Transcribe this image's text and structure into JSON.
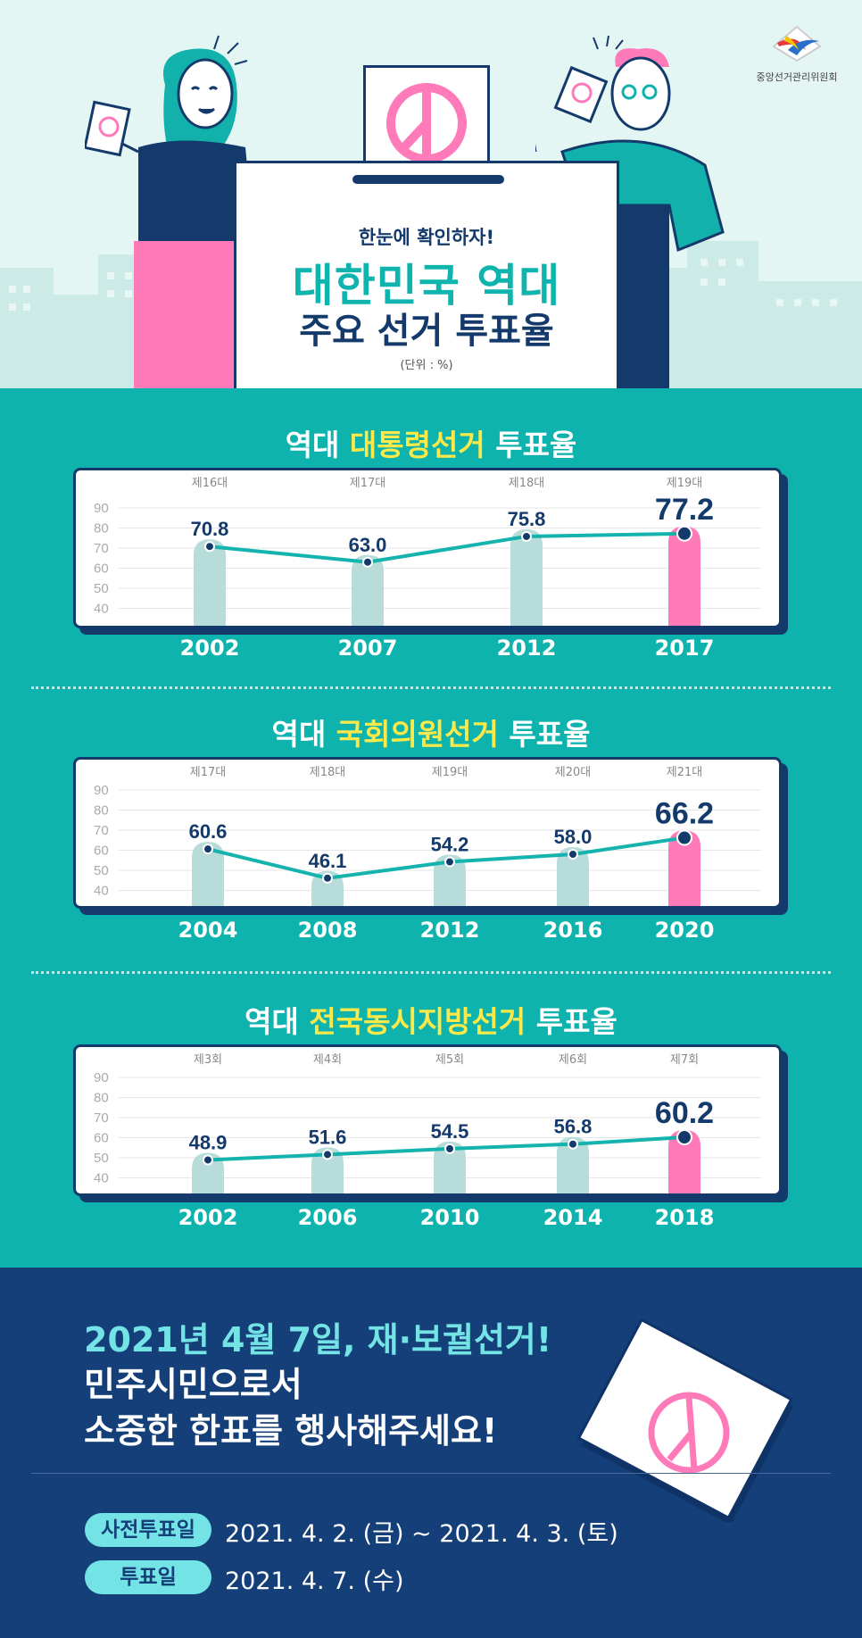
{
  "header": {
    "logo_text": "중앙선거관리위원회",
    "kicker": "한눈에 확인하자!",
    "title_line1": "대한민국 역대",
    "title_line2": "주요 선거 투표율",
    "unit": "(단위 : %)"
  },
  "sections": [
    {
      "title_prefix": "역대 ",
      "title_highlight": "대통령선거",
      "title_suffix": " 투표율"
    },
    {
      "title_prefix": "역대 ",
      "title_highlight": "국회의원선거",
      "title_suffix": " 투표율"
    },
    {
      "title_prefix": "역대 ",
      "title_highlight": "전국동시지방선거",
      "title_suffix": " 투표율"
    }
  ],
  "chart_data": [
    {
      "type": "line",
      "title": "역대 대통령선거 투표율",
      "x": [
        "2002",
        "2007",
        "2012",
        "2017"
      ],
      "rounds": [
        "제16대",
        "제17대",
        "제18대",
        "제19대"
      ],
      "values": [
        70.8,
        63.0,
        75.8,
        77.2
      ],
      "labels": [
        "70.8",
        "63.0",
        "75.8",
        "77.2"
      ],
      "ylim": [
        40,
        90
      ],
      "yticks": [
        "90",
        "80",
        "70",
        "60",
        "50",
        "40"
      ],
      "grid": true,
      "highlight_index": 3
    },
    {
      "type": "line",
      "title": "역대 국회의원선거 투표율",
      "x": [
        "2004",
        "2008",
        "2012",
        "2016",
        "2020"
      ],
      "rounds": [
        "제17대",
        "제18대",
        "제19대",
        "제20대",
        "제21대"
      ],
      "values": [
        60.6,
        46.1,
        54.2,
        58.0,
        66.2
      ],
      "labels": [
        "60.6",
        "46.1",
        "54.2",
        "58.0",
        "66.2"
      ],
      "ylim": [
        40,
        90
      ],
      "yticks": [
        "90",
        "80",
        "70",
        "60",
        "50",
        "40"
      ],
      "grid": true,
      "highlight_index": 4
    },
    {
      "type": "line",
      "title": "역대 전국동시지방선거 투표율",
      "x": [
        "2002",
        "2006",
        "2010",
        "2014",
        "2018"
      ],
      "rounds": [
        "제3회",
        "제4회",
        "제5회",
        "제6회",
        "제7회"
      ],
      "values": [
        48.9,
        51.6,
        54.5,
        56.8,
        60.2
      ],
      "labels": [
        "48.9",
        "51.6",
        "54.5",
        "56.8",
        "60.2"
      ],
      "ylim": [
        40,
        90
      ],
      "yticks": [
        "90",
        "80",
        "70",
        "60",
        "50",
        "40"
      ],
      "grid": true,
      "highlight_index": 4
    }
  ],
  "footer": {
    "line1": "2021년 4월 7일,  재·보궐선거!",
    "line2": "민주시민으로서",
    "line3": "소중한 한표를 행사해주세요!",
    "early_label": "사전투표일",
    "early_date": "2021. 4. 2. (금) ~ 2021. 4. 3. (토)",
    "vote_label": "투표일",
    "vote_date": "2021. 4. 7. (수)"
  },
  "colors": {
    "teal": "#0eb3ad",
    "navy": "#143a6b",
    "pink": "#ff7ab8",
    "bar": "#b8dcda",
    "highlight_text": "#fbe94a",
    "cyan": "#74e3e6"
  }
}
